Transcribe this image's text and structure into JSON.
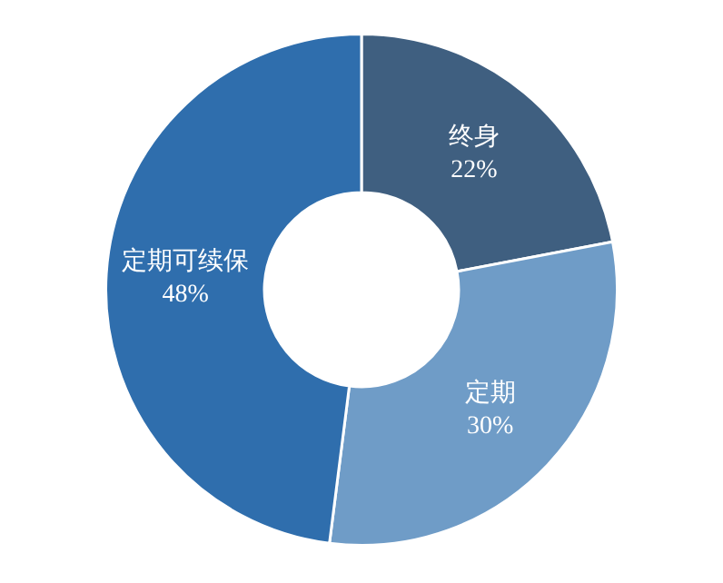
{
  "chart_data": {
    "type": "donut",
    "categories": [
      "终身",
      "定期",
      "定期可续保"
    ],
    "values": [
      22,
      30,
      48
    ],
    "colors": [
      "#3f5f80",
      "#6f9cc7",
      "#2f6ead"
    ],
    "value_labels": [
      "22%",
      "30%",
      "48%"
    ],
    "legend": false
  }
}
